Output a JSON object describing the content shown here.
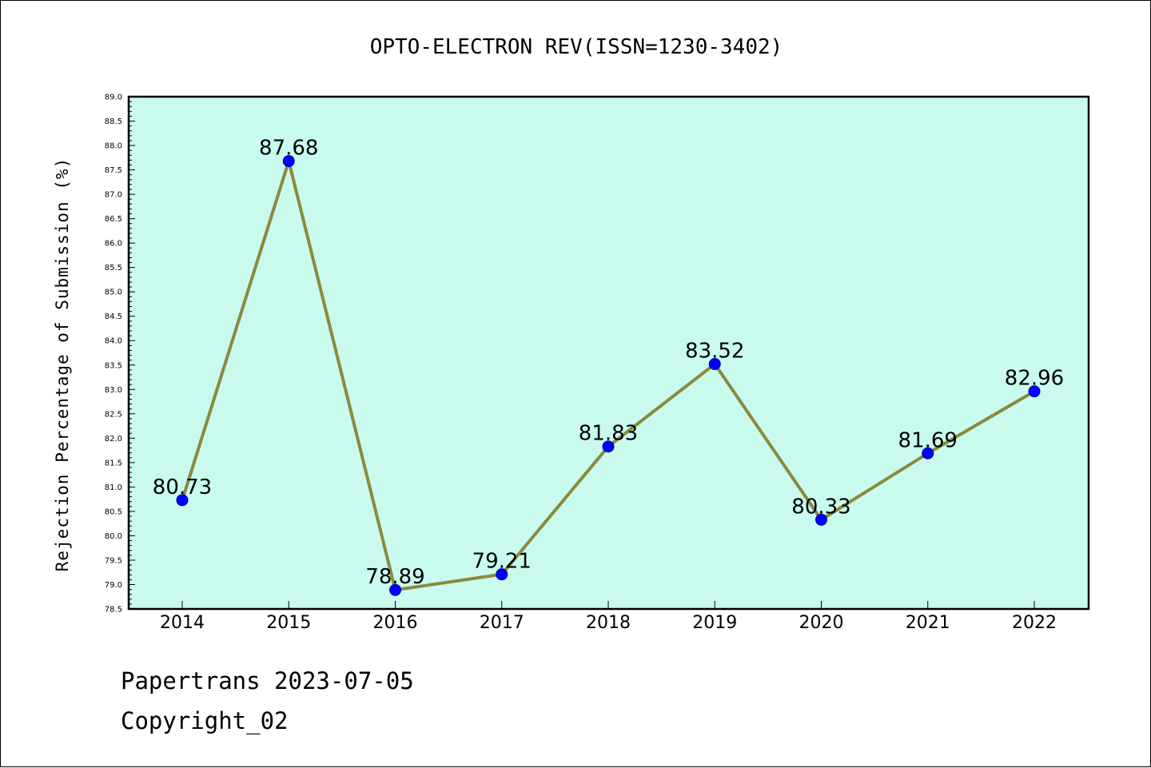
{
  "chart_data": {
    "type": "line",
    "title": "OPTO-ELECTRON REV(ISSN=1230-3402)",
    "xlabel": "",
    "ylabel": "Rejection Percentage of Submission (%)",
    "categories": [
      "2014",
      "2015",
      "2016",
      "2017",
      "2018",
      "2019",
      "2020",
      "2021",
      "2022"
    ],
    "series": [
      {
        "values": [
          80.73,
          87.68,
          78.89,
          79.21,
          81.83,
          83.52,
          80.33,
          81.69,
          82.96
        ],
        "labels": [
          "80.73",
          "87.68",
          "78.89",
          "79.21",
          "81.83",
          "83.52",
          "80.33",
          "81.69",
          "82.96"
        ],
        "line_color": "#8b8a3c",
        "marker_color": "#0000ff"
      }
    ],
    "ylim": [
      78.5,
      89.0
    ],
    "yticks": [
      "78.5",
      "79.0",
      "79.5",
      "80.0",
      "80.5",
      "81.0",
      "81.5",
      "82.0",
      "82.5",
      "83.0",
      "83.5",
      "84.0",
      "84.5",
      "85.0",
      "85.5",
      "86.0",
      "86.5",
      "87.0",
      "87.5",
      "88.0",
      "88.5",
      "89.0"
    ],
    "grid": false,
    "plot_background": "#c8fbee"
  },
  "footer": {
    "line1": "Papertrans 2023-07-05",
    "line2": "Copyright_02"
  }
}
